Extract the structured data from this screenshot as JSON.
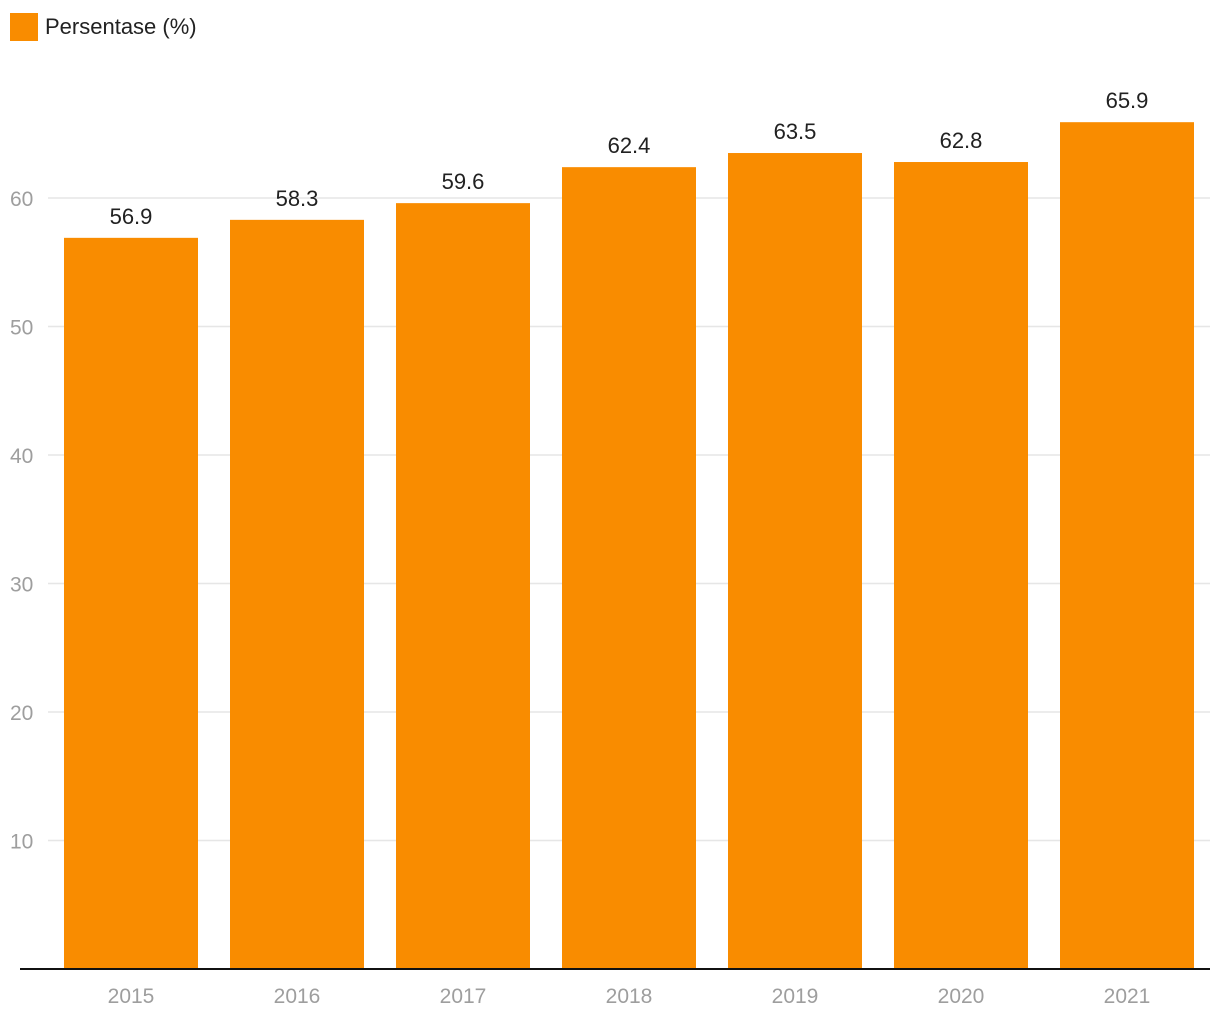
{
  "chart_data": {
    "type": "bar",
    "categories": [
      "2015",
      "2016",
      "2017",
      "2018",
      "2019",
      "2020",
      "2021"
    ],
    "series": [
      {
        "name": "Persentase (%)",
        "values": [
          56.9,
          58.3,
          59.6,
          62.4,
          63.5,
          62.8,
          65.9
        ],
        "color": "#f98c00"
      }
    ],
    "title": "",
    "xlabel": "",
    "ylabel": "",
    "ylim": [
      0,
      70
    ],
    "yticks": [
      10,
      20,
      30,
      40,
      50,
      60
    ],
    "grid": true,
    "legend": "top-left",
    "data_labels": true
  }
}
